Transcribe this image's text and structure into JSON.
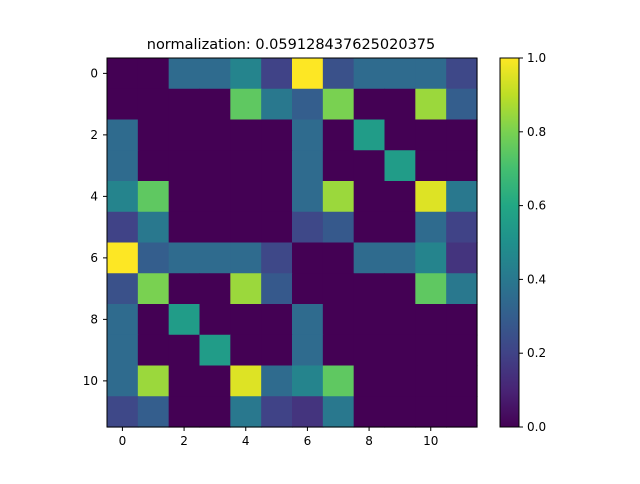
{
  "chart_data": {
    "type": "heatmap",
    "title": "normalization:  0.059128437625020375",
    "xlabel": "",
    "ylabel": "",
    "rows": 12,
    "cols": 12,
    "x_ticks": [
      0,
      2,
      4,
      6,
      8,
      10
    ],
    "y_ticks": [
      0,
      2,
      4,
      6,
      8,
      10
    ],
    "colorbar": {
      "min": 0.0,
      "max": 1.0,
      "ticks": [
        "0.0",
        "0.2",
        "0.4",
        "0.6",
        "0.8",
        "1.0"
      ]
    },
    "colormap": "viridis",
    "values": [
      [
        0.0,
        0.0,
        0.35,
        0.35,
        0.45,
        0.2,
        1.0,
        0.25,
        0.35,
        0.35,
        0.35,
        0.22
      ],
      [
        0.0,
        0.0,
        0.0,
        0.0,
        0.75,
        0.4,
        0.3,
        0.8,
        0.0,
        0.0,
        0.85,
        0.3
      ],
      [
        0.35,
        0.0,
        0.0,
        0.0,
        0.0,
        0.0,
        0.35,
        0.0,
        0.55,
        0.0,
        0.0,
        0.0
      ],
      [
        0.35,
        0.0,
        0.0,
        0.0,
        0.0,
        0.0,
        0.35,
        0.0,
        0.0,
        0.55,
        0.0,
        0.0
      ],
      [
        0.45,
        0.75,
        0.0,
        0.0,
        0.0,
        0.0,
        0.35,
        0.85,
        0.0,
        0.0,
        0.95,
        0.4
      ],
      [
        0.2,
        0.4,
        0.0,
        0.0,
        0.0,
        0.0,
        0.22,
        0.28,
        0.0,
        0.0,
        0.35,
        0.2
      ],
      [
        1.0,
        0.3,
        0.35,
        0.35,
        0.35,
        0.22,
        0.0,
        0.0,
        0.35,
        0.35,
        0.45,
        0.15
      ],
      [
        0.25,
        0.8,
        0.0,
        0.0,
        0.85,
        0.28,
        0.0,
        0.0,
        0.0,
        0.0,
        0.75,
        0.4
      ],
      [
        0.35,
        0.0,
        0.55,
        0.0,
        0.0,
        0.0,
        0.35,
        0.0,
        0.0,
        0.0,
        0.0,
        0.0
      ],
      [
        0.35,
        0.0,
        0.0,
        0.55,
        0.0,
        0.0,
        0.35,
        0.0,
        0.0,
        0.0,
        0.0,
        0.0
      ],
      [
        0.35,
        0.85,
        0.0,
        0.0,
        0.95,
        0.35,
        0.45,
        0.75,
        0.0,
        0.0,
        0.0,
        0.0
      ],
      [
        0.22,
        0.3,
        0.0,
        0.0,
        0.4,
        0.2,
        0.15,
        0.4,
        0.0,
        0.0,
        0.0,
        0.0
      ]
    ]
  }
}
